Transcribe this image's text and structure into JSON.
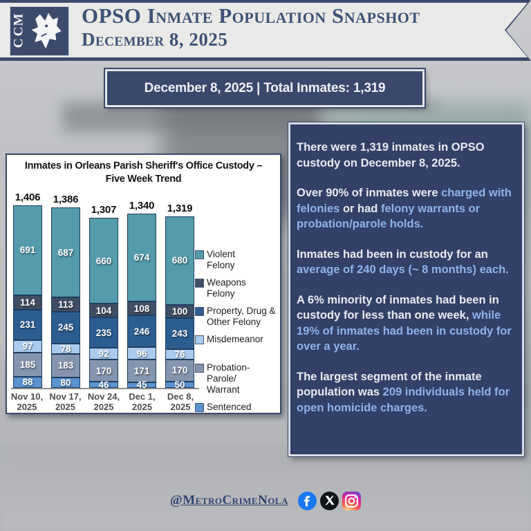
{
  "header": {
    "logo_text": "MCC",
    "title_line1": "OPSO Inmate Population Snapshot",
    "title_line2": "December 8, 2025"
  },
  "banner": {
    "text": "December 8, 2025 | Total Inmates: 1,319"
  },
  "chart_data": {
    "type": "bar",
    "stacked": true,
    "title": "Inmates in Orleans Parish Sheriff's Office Custody – Five Week Trend",
    "title_line1": "Inmates in Orleans Parish Sheriff's Office Custody –",
    "title_line2": "Five Week Trend",
    "categories": [
      "Nov 10, 2025",
      "Nov 17, 2025",
      "Nov 24, 2025",
      "Dec 1, 2025",
      "Dec 8, 2025"
    ],
    "category_lines": [
      [
        "Nov 10,",
        "2025"
      ],
      [
        "Nov 17,",
        "2025"
      ],
      [
        "Nov 24,",
        "2025"
      ],
      [
        "Dec 1,",
        "2025"
      ],
      [
        "Dec 8,",
        "2025"
      ]
    ],
    "totals": [
      1406,
      1386,
      1307,
      1340,
      1319
    ],
    "total_labels": [
      "1,406",
      "1,386",
      "1,307",
      "1,340",
      "1,319"
    ],
    "series": [
      {
        "name": "Sentenced",
        "color": "#5b93d1",
        "values": [
          88,
          80,
          46,
          45,
          50
        ]
      },
      {
        "name": "Probation-Parole/Warrant",
        "color": "#8595af",
        "values": [
          185,
          183,
          170,
          171,
          170
        ]
      },
      {
        "name": "Misdemeanor",
        "color": "#aacbee",
        "values": [
          97,
          78,
          92,
          96,
          76
        ]
      },
      {
        "name": "Property, Drug & Other Felony",
        "color": "#2c5d90",
        "values": [
          231,
          245,
          235,
          246,
          243
        ]
      },
      {
        "name": "Weapons Felony",
        "color": "#404e64",
        "values": [
          114,
          113,
          104,
          108,
          100
        ]
      },
      {
        "name": "Violent Felony",
        "color": "#549bab",
        "values": [
          691,
          687,
          660,
          674,
          680
        ]
      }
    ],
    "legend": [
      {
        "series": "Violent Felony",
        "lines": [
          "Violent",
          "Felony"
        ]
      },
      {
        "series": "Weapons Felony",
        "lines": [
          "Weapons",
          "Felony"
        ]
      },
      {
        "series": "Property, Drug & Other Felony",
        "lines": [
          "Property, Drug &",
          "Other Felony"
        ]
      },
      {
        "series": "Misdemeanor",
        "lines": [
          "Misdemeanor"
        ]
      },
      {
        "series": "Probation-Parole/Warrant",
        "lines": [
          "Probation-Parole/",
          "Warrant"
        ]
      },
      {
        "series": "Sentenced",
        "lines": [
          "Sentenced"
        ]
      }
    ],
    "legend_position": "right",
    "ylim": [
      0,
      1500
    ],
    "grid": false
  },
  "summary_panel": {
    "paragraphs": [
      [
        {
          "t": "There were 1,319 inmates in OPSO custody on December 8, 2025.",
          "c": "w"
        }
      ],
      [
        {
          "t": "Over 90% of inmates were ",
          "c": "w"
        },
        {
          "t": "charged with felonies",
          "c": "b"
        },
        {
          "t": " or had ",
          "c": "w"
        },
        {
          "t": "felony warrants or probation/parole holds.",
          "c": "b"
        }
      ],
      [
        {
          "t": "Inmates had been in custody for an ",
          "c": "w"
        },
        {
          "t": "average of 240 days (~ 8 months) each.",
          "c": "b"
        }
      ],
      [
        {
          "t": "A 6% minority of inmates had been in custody for less than one week, ",
          "c": "w"
        },
        {
          "t": "while 19% of inmates had been in custody for over a year.",
          "c": "b"
        }
      ],
      [
        {
          "t": "The largest segment of the inmate population was ",
          "c": "w"
        },
        {
          "t": "209 individuals held for open homicide charges.",
          "c": "b"
        }
      ]
    ],
    "text_colors": {
      "white": "#e9ecf2",
      "blue": "#8fb3e9"
    },
    "background": "#334067",
    "border": "#d9dde6"
  },
  "footer": {
    "handle": "@MetroCrimeNola",
    "icons": [
      "facebook-icon",
      "x-icon",
      "instagram-icon"
    ]
  },
  "colors": {
    "navy": "#3c4a6c",
    "header_bg": "#e9e9e7",
    "banner_bg": "#3a486c",
    "chart_border": "#3a4a6e",
    "facebook_blue": "#1877f2",
    "x_black": "#0f1419",
    "instagram_gradient": [
      "#fdf497",
      "#fd5949",
      "#d6249f",
      "#285AEB"
    ]
  }
}
